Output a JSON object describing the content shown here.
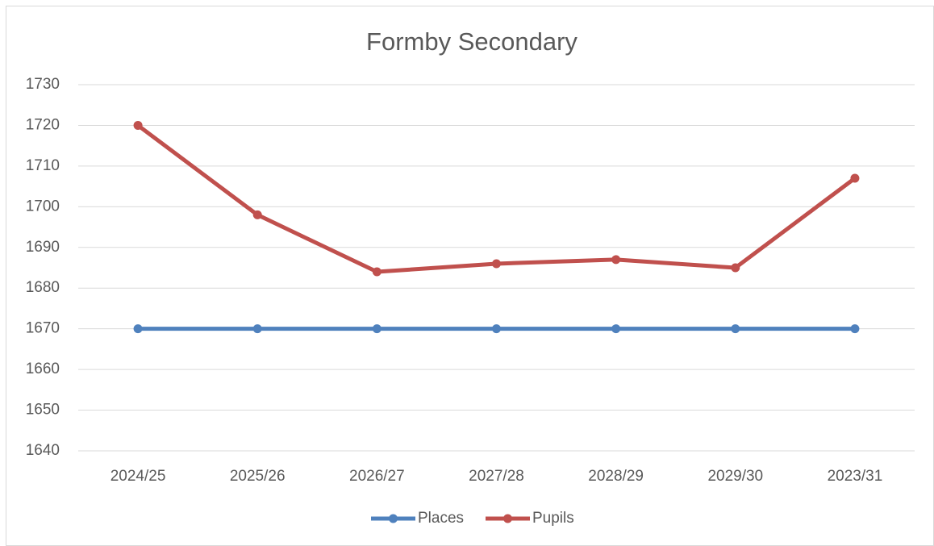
{
  "chart_data": {
    "type": "line",
    "title": "Formby Secondary",
    "categories": [
      "2024/25",
      "2025/26",
      "2026/27",
      "2027/28",
      "2028/29",
      "2029/30",
      "2023/31"
    ],
    "series": [
      {
        "name": "Places",
        "color": "#4f81bd",
        "values": [
          1670,
          1670,
          1670,
          1670,
          1670,
          1670,
          1670
        ]
      },
      {
        "name": "Pupils",
        "color": "#c0504d",
        "values": [
          1720,
          1698,
          1684,
          1686,
          1687,
          1685,
          1707
        ]
      }
    ],
    "ylim": [
      1640,
      1730
    ],
    "yticks": [
      1640,
      1650,
      1660,
      1670,
      1680,
      1690,
      1700,
      1710,
      1720,
      1730
    ],
    "grid": true,
    "legend": "bottom"
  }
}
